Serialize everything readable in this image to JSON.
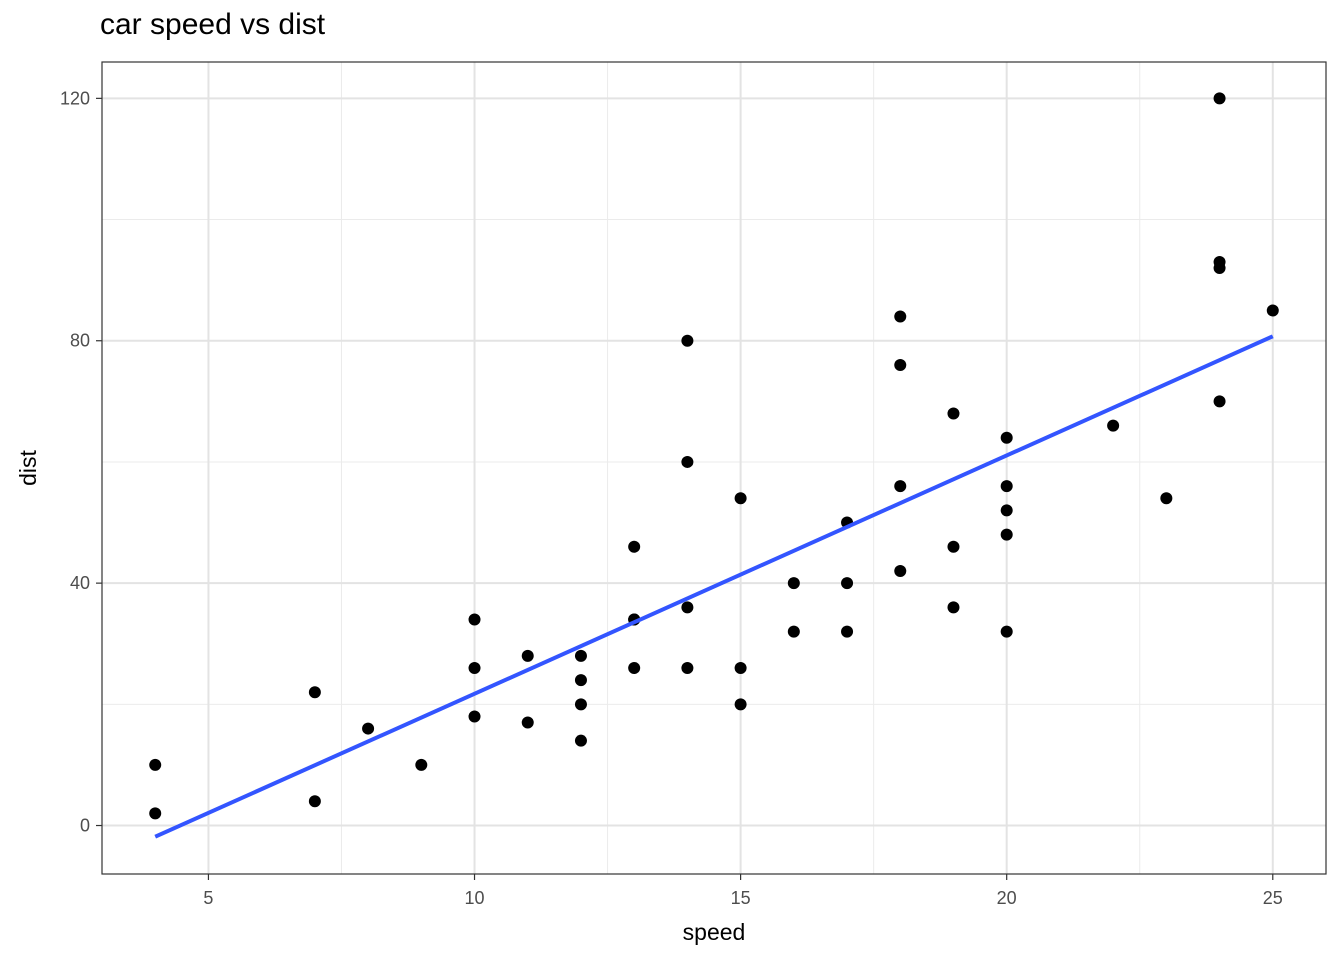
{
  "chart_data": {
    "type": "scatter",
    "title": "car speed vs dist",
    "xlabel": "speed",
    "ylabel": "dist",
    "xlim": [
      3,
      26
    ],
    "ylim": [
      -8,
      126
    ],
    "x_ticks": [
      5,
      10,
      15,
      20,
      25
    ],
    "y_ticks": [
      0,
      40,
      80,
      120
    ],
    "x_minor_ticks": [
      7.5,
      12.5,
      17.5,
      22.5
    ],
    "y_minor_ticks": [
      20,
      60,
      100
    ],
    "grid": true,
    "point_color": "#000000",
    "series": [
      {
        "points": [
          [
            4,
            2
          ],
          [
            4,
            10
          ],
          [
            7,
            4
          ],
          [
            7,
            22
          ],
          [
            8,
            16
          ],
          [
            9,
            10
          ],
          [
            10,
            18
          ],
          [
            10,
            26
          ],
          [
            10,
            34
          ],
          [
            11,
            17
          ],
          [
            11,
            28
          ],
          [
            12,
            14
          ],
          [
            12,
            20
          ],
          [
            12,
            24
          ],
          [
            12,
            28
          ],
          [
            13,
            26
          ],
          [
            13,
            34
          ],
          [
            13,
            34
          ],
          [
            13,
            46
          ],
          [
            14,
            26
          ],
          [
            14,
            36
          ],
          [
            14,
            60
          ],
          [
            14,
            80
          ],
          [
            15,
            20
          ],
          [
            15,
            26
          ],
          [
            15,
            54
          ],
          [
            16,
            32
          ],
          [
            16,
            40
          ],
          [
            17,
            32
          ],
          [
            17,
            40
          ],
          [
            17,
            50
          ],
          [
            18,
            42
          ],
          [
            18,
            56
          ],
          [
            18,
            76
          ],
          [
            18,
            84
          ],
          [
            19,
            36
          ],
          [
            19,
            46
          ],
          [
            19,
            68
          ],
          [
            20,
            32
          ],
          [
            20,
            48
          ],
          [
            20,
            52
          ],
          [
            20,
            56
          ],
          [
            20,
            64
          ],
          [
            22,
            66
          ],
          [
            23,
            54
          ],
          [
            24,
            70
          ],
          [
            24,
            92
          ],
          [
            24,
            93
          ],
          [
            24,
            120
          ],
          [
            25,
            85
          ]
        ]
      }
    ],
    "fit_line": {
      "color": "#3355ff",
      "x": [
        4,
        25
      ],
      "y": [
        -1.85,
        80.73
      ]
    }
  }
}
